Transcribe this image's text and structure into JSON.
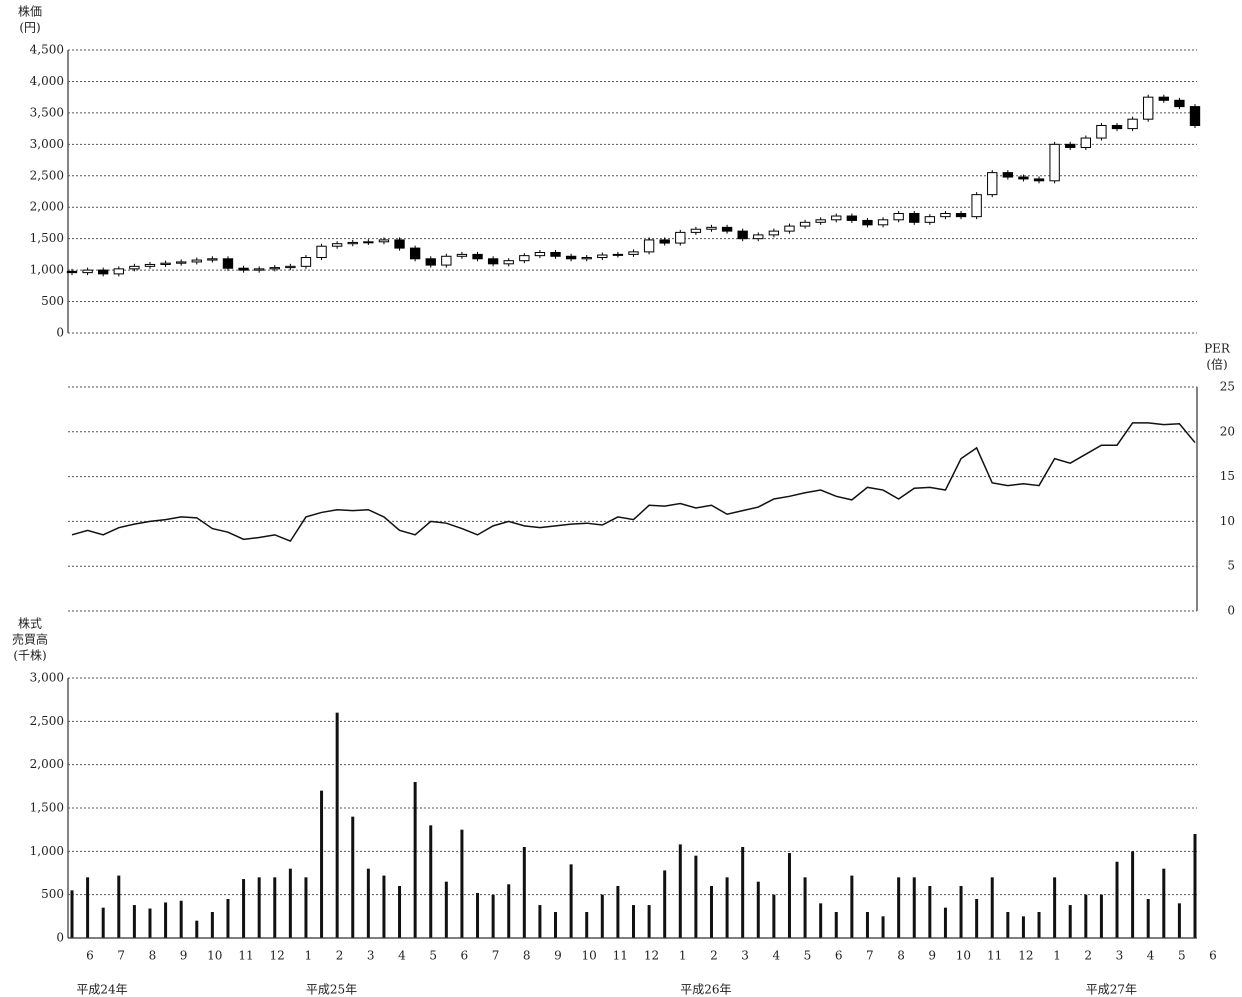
{
  "chart_data": [
    {
      "type": "candlestick",
      "y_label": [
        "株価",
        "(円)"
      ],
      "open": [
        980,
        960,
        1000,
        940,
        1020,
        1060,
        1090,
        1110,
        1130,
        1160,
        1180,
        1030,
        1000,
        1020,
        1040,
        1060,
        1200,
        1380,
        1420,
        1440,
        1450,
        1480,
        1350,
        1180,
        1080,
        1220,
        1250,
        1180,
        1100,
        1150,
        1230,
        1280,
        1220,
        1180,
        1200,
        1240,
        1250,
        1290,
        1480,
        1430,
        1600,
        1650,
        1680,
        1620,
        1500,
        1560,
        1620,
        1700,
        1760,
        1800,
        1860,
        1790,
        1720,
        1800,
        1900,
        1760,
        1850,
        1900,
        1850,
        2200,
        2550,
        2480,
        2450,
        2420,
        3000,
        2950,
        3100,
        3300,
        3250,
        3400,
        3750,
        3700,
        3600
      ],
      "high": [
        1020,
        1040,
        1040,
        1060,
        1100,
        1130,
        1150,
        1170,
        1200,
        1220,
        1220,
        1070,
        1060,
        1080,
        1100,
        1240,
        1420,
        1460,
        1480,
        1490,
        1520,
        1520,
        1390,
        1220,
        1260,
        1290,
        1290,
        1220,
        1190,
        1270,
        1320,
        1320,
        1260,
        1240,
        1280,
        1290,
        1330,
        1520,
        1520,
        1640,
        1690,
        1720,
        1720,
        1660,
        1600,
        1660,
        1740,
        1800,
        1840,
        1900,
        1900,
        1830,
        1840,
        1940,
        1940,
        1890,
        1940,
        1940,
        2240,
        2590,
        2590,
        2520,
        2490,
        3040,
        3040,
        3140,
        3340,
        3340,
        3440,
        3790,
        3790,
        3740,
        3640
      ],
      "low": [
        920,
        920,
        900,
        900,
        980,
        1020,
        1050,
        1070,
        1090,
        1120,
        990,
        960,
        960,
        980,
        1000,
        1020,
        1160,
        1340,
        1380,
        1400,
        1410,
        1310,
        1140,
        1040,
        1040,
        1180,
        1140,
        1060,
        1060,
        1110,
        1190,
        1180,
        1140,
        1140,
        1160,
        1200,
        1210,
        1250,
        1390,
        1390,
        1560,
        1610,
        1580,
        1460,
        1460,
        1520,
        1580,
        1660,
        1720,
        1760,
        1750,
        1680,
        1680,
        1760,
        1720,
        1720,
        1810,
        1810,
        1810,
        2160,
        2440,
        2410,
        2380,
        2380,
        2910,
        2910,
        3060,
        3210,
        3210,
        3360,
        3660,
        3560,
        3260
      ],
      "close": [
        960,
        1000,
        940,
        1020,
        1060,
        1090,
        1110,
        1130,
        1160,
        1180,
        1030,
        1000,
        1020,
        1040,
        1060,
        1200,
        1380,
        1420,
        1440,
        1450,
        1480,
        1350,
        1180,
        1080,
        1220,
        1250,
        1180,
        1100,
        1150,
        1230,
        1280,
        1220,
        1180,
        1200,
        1240,
        1250,
        1290,
        1480,
        1430,
        1600,
        1650,
        1680,
        1620,
        1500,
        1560,
        1620,
        1700,
        1760,
        1800,
        1860,
        1790,
        1720,
        1800,
        1900,
        1760,
        1850,
        1900,
        1850,
        2200,
        2550,
        2480,
        2450,
        2420,
        3000,
        2950,
        3100,
        3300,
        3250,
        3400,
        3750,
        3700,
        3600,
        3300
      ],
      "up_color": "#ffffff",
      "down_color": "#000000",
      "ylim": [
        0,
        4500
      ],
      "yticks": [
        0,
        500,
        {
          "value": 1000,
          "label": "1,000"
        },
        {
          "value": 1500,
          "label": "1,500"
        },
        {
          "value": 2000,
          "label": "2,000"
        },
        {
          "value": 2500,
          "label": "2,500"
        },
        {
          "value": 3000,
          "label": "3,000"
        },
        {
          "value": 3500,
          "label": "3,500"
        },
        {
          "value": 4000,
          "label": "4,000"
        },
        {
          "value": 4500,
          "label": "4,500"
        }
      ],
      "grid": true
    },
    {
      "type": "line",
      "y_label": [
        "PER",
        "(倍)"
      ],
      "axis_side": "right",
      "color": "#111111",
      "values": [
        8.5,
        9,
        8.5,
        9.3,
        9.7,
        10,
        10.2,
        10.5,
        10.4,
        9.2,
        8.8,
        8,
        8.2,
        8.5,
        7.8,
        10.5,
        11,
        11.3,
        11.2,
        11.3,
        10.5,
        9,
        8.5,
        10,
        9.8,
        9.2,
        8.5,
        9.5,
        10,
        9.5,
        9.3,
        9.5,
        9.7,
        9.8,
        9.6,
        10.5,
        10.2,
        11.8,
        11.7,
        12,
        11.5,
        11.8,
        10.8,
        11.2,
        11.6,
        12.5,
        12.8,
        13.2,
        13.5,
        12.8,
        12.4,
        13.8,
        13.5,
        12.5,
        13.7,
        13.8,
        13.5,
        17,
        18.2,
        14.3,
        14,
        14.2,
        14,
        17,
        16.5,
        17.5,
        18.5,
        18.5,
        21,
        21,
        20.8,
        20.9,
        18.8
      ],
      "ylim": [
        0,
        25
      ],
      "yticks": [
        0,
        5,
        10,
        15,
        20,
        25
      ],
      "grid": true
    },
    {
      "type": "bar",
      "y_label": [
        "株式",
        "売買高",
        "(千株)"
      ],
      "color": "#111111",
      "categories": [
        "6",
        null,
        "7",
        null,
        "8",
        null,
        "9",
        null,
        "10",
        null,
        "11",
        null,
        "12",
        null,
        "1",
        null,
        "2",
        null,
        "3",
        null,
        "4",
        null,
        "5",
        null,
        "6",
        null,
        "7",
        null,
        "8",
        null,
        "9",
        null,
        "10",
        null,
        "11",
        null,
        "12",
        null,
        "1",
        null,
        "2",
        null,
        "3",
        null,
        "4",
        null,
        "5",
        null,
        "6",
        null,
        "7",
        null,
        "8",
        null,
        "9",
        null,
        "10",
        null,
        "11",
        null,
        "12",
        null,
        "1",
        null,
        "2",
        null,
        "3",
        null,
        "4",
        null,
        "5",
        null,
        "6"
      ],
      "year_labels": [
        "平成24年",
        "平成25年",
        "平成26年",
        "平成27年"
      ],
      "values": [
        550,
        700,
        350,
        720,
        380,
        340,
        410,
        430,
        200,
        300,
        450,
        680,
        700,
        700,
        800,
        700,
        1700,
        2600,
        1400,
        800,
        720,
        600,
        1800,
        1300,
        650,
        1250,
        520,
        500,
        620,
        1050,
        380,
        300,
        850,
        300,
        500,
        600,
        380,
        380,
        780,
        1080,
        950,
        600,
        700,
        1050,
        650,
        500,
        980,
        700,
        400,
        300,
        720,
        300,
        250,
        700,
        700,
        600,
        350,
        600,
        450,
        700,
        300,
        250,
        300,
        700,
        380,
        500,
        500,
        880,
        1000,
        450,
        800,
        400,
        1200
      ],
      "ylim": [
        0,
        3000
      ],
      "yticks": [
        0,
        500,
        {
          "value": 1000,
          "label": "1,000"
        },
        {
          "value": 1500,
          "label": "1,500"
        },
        {
          "value": 2000,
          "label": "2,000"
        },
        {
          "value": 2500,
          "label": "2,500"
        },
        {
          "value": 3000,
          "label": "3,000"
        }
      ],
      "grid": true
    }
  ]
}
